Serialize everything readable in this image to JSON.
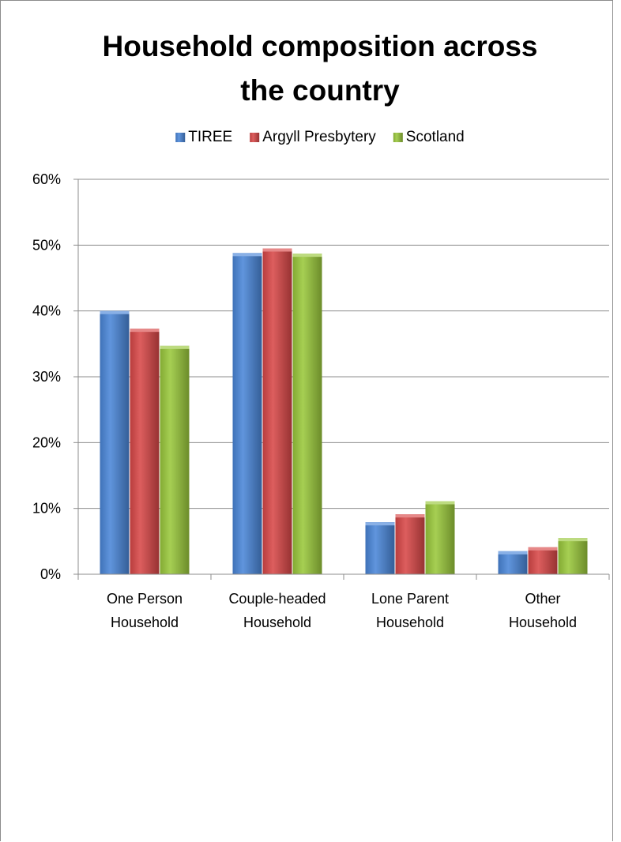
{
  "chart_data": {
    "type": "bar",
    "title_lines": [
      "Household composition across",
      "the country"
    ],
    "categories": [
      [
        "One Person",
        "Household"
      ],
      [
        "Couple-headed",
        "Household"
      ],
      [
        "Lone Parent",
        "Household"
      ],
      [
        "Other",
        "Household"
      ]
    ],
    "series": [
      {
        "name": "TIREE",
        "color": "#4a86d8",
        "values": [
          0.4,
          0.488,
          0.079,
          0.035
        ]
      },
      {
        "name": "Argyll Presbytery",
        "color": "#d84848",
        "values": [
          0.373,
          0.495,
          0.091,
          0.041
        ]
      },
      {
        "name": "Scotland",
        "color": "#9ac83c",
        "values": [
          0.347,
          0.487,
          0.111,
          0.055
        ]
      }
    ],
    "ylim": [
      0,
      0.6
    ],
    "yticks": [
      0,
      0.1,
      0.2,
      0.3,
      0.4,
      0.5,
      0.6
    ],
    "ytick_labels": [
      "0%",
      "10%",
      "20%",
      "30%",
      "40%",
      "50%",
      "60%"
    ],
    "grid": true,
    "legend_position": "top"
  }
}
